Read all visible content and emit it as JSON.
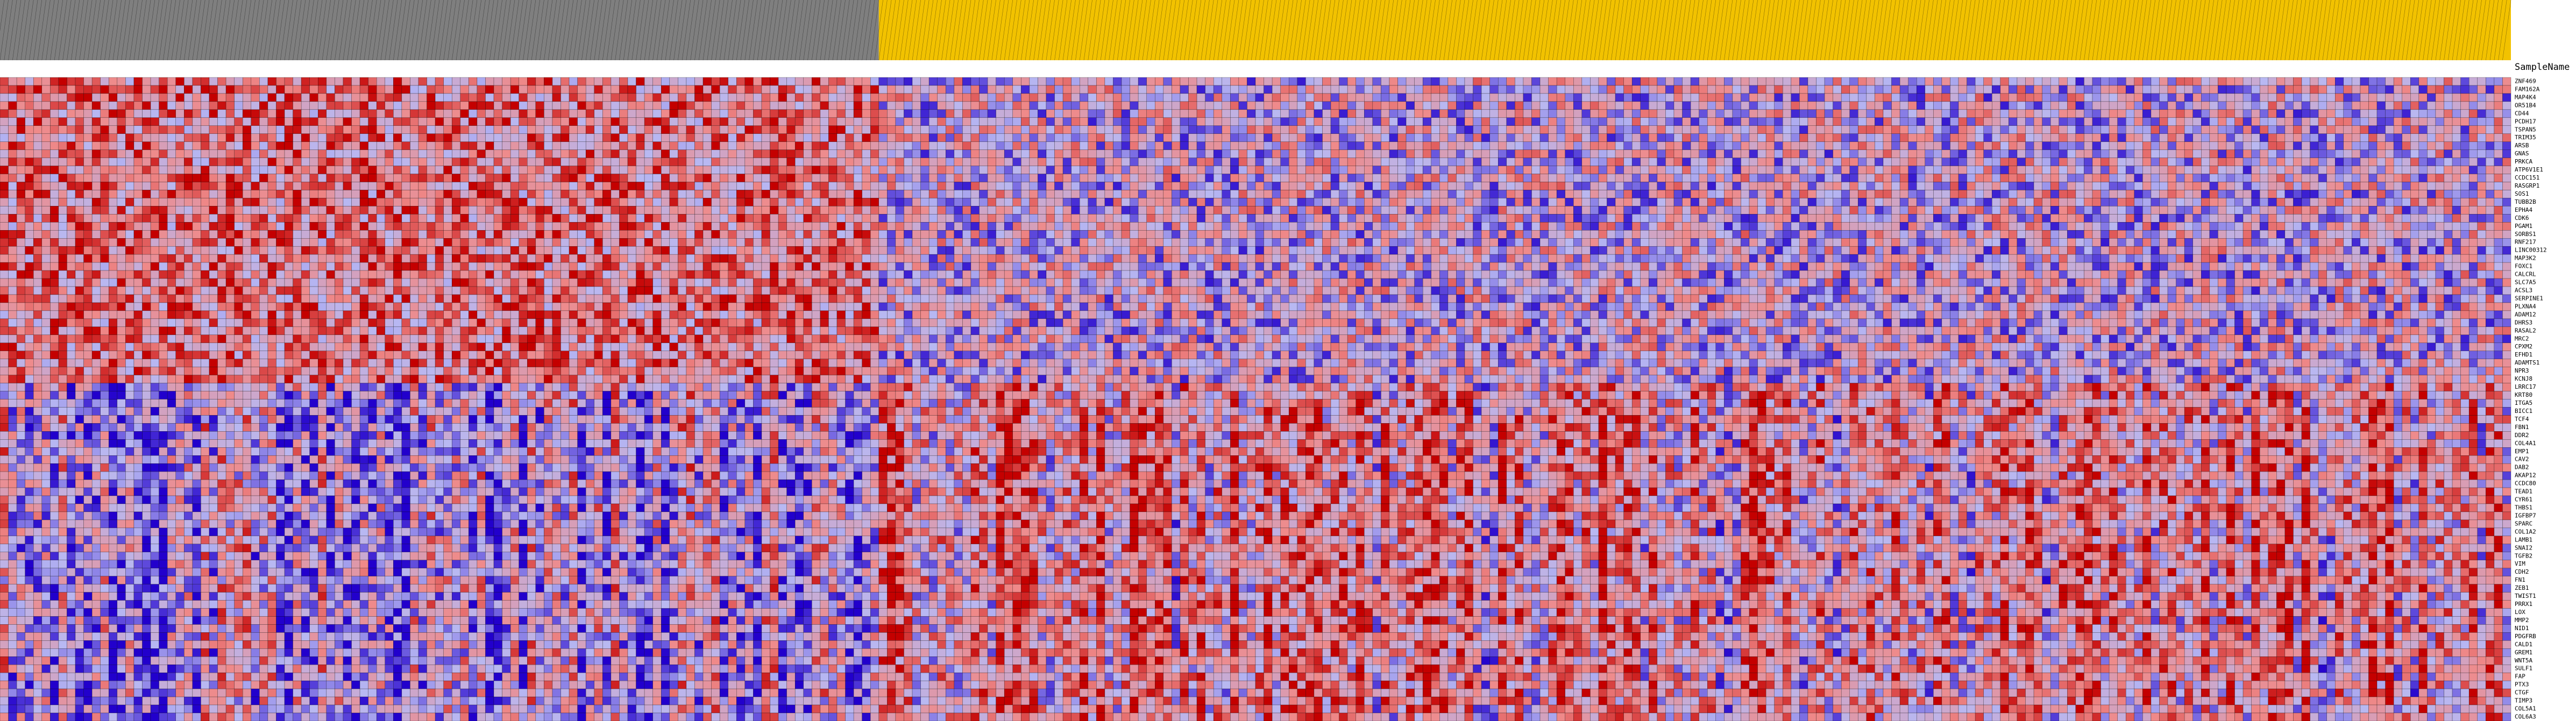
{
  "chart_data": {
    "type": "heatmap",
    "row_header_label": "SampleName",
    "class_colors": [
      "#7f7f7f",
      "#f2c200"
    ],
    "color_scale": {
      "low": "#2200cc",
      "mid_low": "#b8b8f2",
      "mid_high": "#ef8a8a",
      "high": "#c40000"
    },
    "columns": {
      "count": 300,
      "class_counts": [
        105,
        195
      ]
    },
    "genes": [
      "ZNF469",
      "FAM162A",
      "MAP4K4",
      "OR51B4",
      "CD44",
      "PCDH17",
      "TSPAN5",
      "TRIM35",
      "ARSB",
      "GNAS",
      "PRKCA",
      "ATP6V1E1",
      "CCDC151",
      "RASGRP1",
      "SOS1",
      "TUBB2B",
      "EPHA4",
      "CDK6",
      "PGAM1",
      "SORBS1",
      "RNF217",
      "LINC00312",
      "MAP3K2",
      "FOXC1",
      "CALCRL",
      "SLC7A5",
      "ACSL3",
      "SERPINE1",
      "PLXNA4",
      "ADAM12",
      "DHRS3",
      "RASAL2",
      "MRC2",
      "CPXM2",
      "EFHD1",
      "ADAMTS1",
      "NPR3",
      "KCNJ8",
      "LRRC17",
      "KRT80",
      "ITGA5",
      "BICC1",
      "TCF4",
      "FBN1",
      "DDR2",
      "COL4A1",
      "EMP1",
      "CAV2",
      "DAB2",
      "AKAP12",
      "CCDC80",
      "TEAD1",
      "CYR61",
      "THBS1",
      "IGFBP7",
      "SPARC",
      "COL1A2",
      "LAMB1",
      "SNAI2",
      "TGFB2",
      "VIM",
      "CDH2",
      "FN1",
      "ZEB1",
      "TWIST1",
      "PRRX1",
      "LOX",
      "MMP2",
      "NID1",
      "PDGFRB",
      "CALD1",
      "GREM1",
      "WNT5A",
      "SULF1",
      "FAP",
      "PTX3",
      "CTGF",
      "TIMP3",
      "COL5A1",
      "COL6A3"
    ]
  }
}
